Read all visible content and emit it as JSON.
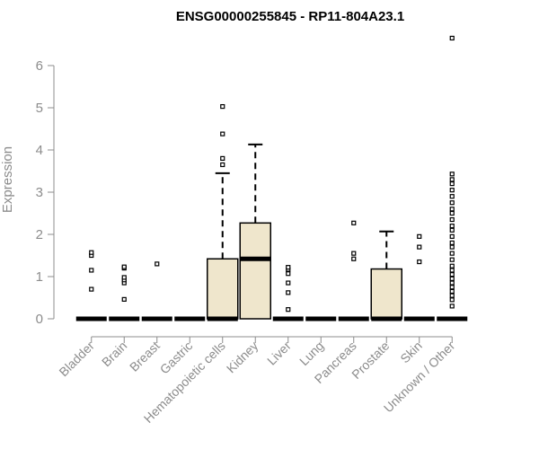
{
  "chart_data": {
    "type": "boxplot",
    "title": "ENSG00000255845 - RP11-804A23.1",
    "ylabel": "Expression",
    "xlabel": "",
    "ylim": [
      0,
      6.7
    ],
    "yticks": [
      0,
      1,
      2,
      3,
      4,
      5,
      6
    ],
    "grid": false,
    "legend": "none",
    "box_fill": "#efe6cc",
    "box_stroke": "#000000",
    "axis_color": "#8c8c8c",
    "categories": [
      "Bladder",
      "Brain",
      "Breast",
      "Gastric",
      "Hematopoietic cells",
      "Kidney",
      "Liver",
      "Lung",
      "Pancreas",
      "Prostate",
      "Skin",
      "Unknown / Other"
    ],
    "boxes": [
      {
        "q1": 0,
        "median": 0,
        "q3": 0,
        "whisker_low": 0,
        "whisker_high": 0,
        "outliers": [
          0.7,
          1.15,
          1.5,
          1.57
        ]
      },
      {
        "q1": 0,
        "median": 0,
        "q3": 0,
        "whisker_low": 0,
        "whisker_high": 0,
        "outliers": [
          0.46,
          0.85,
          0.92,
          0.98,
          1.2,
          1.23
        ]
      },
      {
        "q1": 0,
        "median": 0,
        "q3": 0,
        "whisker_low": 0,
        "whisker_high": 0,
        "outliers": [
          1.3
        ]
      },
      {
        "q1": 0,
        "median": 0,
        "q3": 0,
        "whisker_low": 0,
        "whisker_high": 0,
        "outliers": []
      },
      {
        "q1": 0,
        "median": 0,
        "q3": 1.42,
        "whisker_low": 0,
        "whisker_high": 3.45,
        "outliers": [
          3.65,
          3.8,
          4.38,
          5.03
        ]
      },
      {
        "q1": 0,
        "median": 1.42,
        "q3": 2.27,
        "whisker_low": 0,
        "whisker_high": 4.13,
        "outliers": []
      },
      {
        "q1": 0,
        "median": 0,
        "q3": 0,
        "whisker_low": 0,
        "whisker_high": 0,
        "outliers": [
          0.22,
          0.62,
          0.85,
          1.07,
          1.17,
          1.22
        ]
      },
      {
        "q1": 0,
        "median": 0,
        "q3": 0,
        "whisker_low": 0,
        "whisker_high": 0,
        "outliers": []
      },
      {
        "q1": 0,
        "median": 0,
        "q3": 0,
        "whisker_low": 0,
        "whisker_high": 0,
        "outliers": [
          1.42,
          1.55,
          2.27
        ]
      },
      {
        "q1": 0,
        "median": 0,
        "q3": 1.18,
        "whisker_low": 0,
        "whisker_high": 2.07,
        "outliers": []
      },
      {
        "q1": 0,
        "median": 0,
        "q3": 0,
        "whisker_low": 0,
        "whisker_high": 0,
        "outliers": [
          1.35,
          1.7,
          1.95
        ]
      },
      {
        "q1": 0,
        "median": 0,
        "q3": 0,
        "whisker_low": 0,
        "whisker_high": 0,
        "outliers": [
          0.3,
          0.45,
          0.55,
          0.65,
          0.75,
          0.85,
          0.95,
          1.05,
          1.15,
          1.25,
          1.4,
          1.55,
          1.7,
          1.8,
          1.95,
          2.1,
          2.2,
          2.35,
          2.5,
          2.6,
          2.75,
          2.9,
          3.05,
          3.2,
          3.3,
          3.43,
          6.65
        ]
      }
    ]
  }
}
